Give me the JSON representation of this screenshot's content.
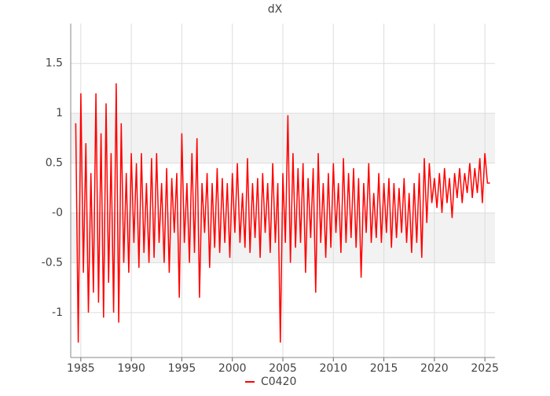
{
  "chart_data": {
    "type": "line",
    "title": "dX",
    "x": [
      1984.5,
      1984.75,
      1985,
      1985.25,
      1985.5,
      1985.75,
      1986,
      1986.25,
      1986.5,
      1986.75,
      1987,
      1987.25,
      1987.5,
      1987.75,
      1988,
      1988.25,
      1988.5,
      1988.75,
      1989,
      1989.25,
      1989.5,
      1989.75,
      1990,
      1990.25,
      1990.5,
      1990.75,
      1991,
      1991.25,
      1991.5,
      1991.75,
      1992,
      1992.25,
      1992.5,
      1992.75,
      1993,
      1993.25,
      1993.5,
      1993.75,
      1994,
      1994.25,
      1994.5,
      1994.75,
      1995,
      1995.25,
      1995.5,
      1995.75,
      1996,
      1996.25,
      1996.5,
      1996.75,
      1997,
      1997.25,
      1997.5,
      1997.75,
      1998,
      1998.25,
      1998.5,
      1998.75,
      1999,
      1999.25,
      1999.5,
      1999.75,
      2000,
      2000.25,
      2000.5,
      2000.75,
      2001,
      2001.25,
      2001.5,
      2001.75,
      2002,
      2002.25,
      2002.5,
      2002.75,
      2003,
      2003.25,
      2003.5,
      2003.75,
      2004,
      2004.25,
      2004.5,
      2004.75,
      2005,
      2005.25,
      2005.5,
      2005.75,
      2006,
      2006.25,
      2006.5,
      2006.75,
      2007,
      2007.25,
      2007.5,
      2007.75,
      2008,
      2008.25,
      2008.5,
      2008.75,
      2009,
      2009.25,
      2009.5,
      2009.75,
      2010,
      2010.25,
      2010.5,
      2010.75,
      2011,
      2011.25,
      2011.5,
      2011.75,
      2012,
      2012.25,
      2012.5,
      2012.75,
      2013,
      2013.25,
      2013.5,
      2013.75,
      2014,
      2014.25,
      2014.5,
      2014.75,
      2015,
      2015.25,
      2015.5,
      2015.75,
      2016,
      2016.25,
      2016.5,
      2016.75,
      2017,
      2017.25,
      2017.5,
      2017.75,
      2018,
      2018.25,
      2018.5,
      2018.75,
      2019,
      2019.25,
      2019.5,
      2019.75,
      2020,
      2020.25,
      2020.5,
      2020.75,
      2021,
      2021.25,
      2021.5,
      2021.75,
      2022,
      2022.25,
      2022.5,
      2022.75,
      2023,
      2023.25,
      2023.5,
      2023.75,
      2024,
      2024.25,
      2024.5,
      2024.75,
      2025,
      2025.25,
      2025.5
    ],
    "series": [
      {
        "name": "C0420",
        "color": "#ff0000",
        "values": [
          0.9,
          -1.3,
          1.2,
          -0.6,
          0.7,
          -1.0,
          0.4,
          -0.8,
          1.2,
          -0.9,
          0.8,
          -1.05,
          1.1,
          -0.7,
          0.6,
          -1.0,
          1.3,
          -1.1,
          0.9,
          -0.5,
          0.4,
          -0.6,
          0.6,
          -0.3,
          0.5,
          -0.55,
          0.6,
          -0.4,
          0.3,
          -0.5,
          0.55,
          -0.45,
          0.6,
          -0.3,
          0.3,
          -0.5,
          0.45,
          -0.6,
          0.35,
          -0.2,
          0.4,
          -0.85,
          0.8,
          -0.3,
          0.3,
          -0.5,
          0.6,
          -0.4,
          0.75,
          -0.85,
          0.3,
          -0.2,
          0.4,
          -0.55,
          0.3,
          -0.35,
          0.45,
          -0.4,
          0.35,
          -0.3,
          0.3,
          -0.45,
          0.4,
          -0.2,
          0.5,
          -0.3,
          0.2,
          -0.35,
          0.55,
          -0.4,
          0.3,
          -0.25,
          0.35,
          -0.45,
          0.4,
          -0.2,
          0.3,
          -0.4,
          0.5,
          -0.3,
          0.3,
          -1.3,
          0.4,
          -0.3,
          0.98,
          -0.5,
          0.6,
          -0.35,
          0.45,
          -0.3,
          0.5,
          -0.6,
          0.35,
          -0.25,
          0.45,
          -0.8,
          0.6,
          -0.3,
          0.3,
          -0.45,
          0.4,
          -0.35,
          0.5,
          -0.2,
          0.3,
          -0.4,
          0.55,
          -0.3,
          0.4,
          -0.25,
          0.45,
          -0.35,
          0.35,
          -0.65,
          0.3,
          -0.2,
          0.5,
          -0.3,
          0.2,
          -0.25,
          0.4,
          -0.3,
          0.3,
          -0.2,
          0.35,
          -0.35,
          0.3,
          -0.25,
          0.25,
          -0.2,
          0.35,
          -0.3,
          0.2,
          -0.4,
          0.3,
          -0.3,
          0.4,
          -0.45,
          0.55,
          -0.1,
          0.5,
          0.1,
          0.35,
          0.05,
          0.4,
          0.0,
          0.45,
          0.1,
          0.35,
          -0.05,
          0.4,
          0.15,
          0.45,
          0.1,
          0.4,
          0.2,
          0.5,
          0.15,
          0.45,
          0.2,
          0.55,
          0.1,
          0.6,
          0.3,
          0.3
        ]
      }
    ],
    "xlim": [
      1984,
      2026
    ],
    "xticks": [
      1985,
      1990,
      1995,
      2000,
      2005,
      2010,
      2015,
      2020,
      2025
    ],
    "ylim": [
      -1.45,
      1.9
    ],
    "yticks": [
      -1,
      -0.5,
      {
        "value": 0,
        "label": "-0"
      },
      0.5,
      1,
      1.5
    ],
    "grid": true
  }
}
